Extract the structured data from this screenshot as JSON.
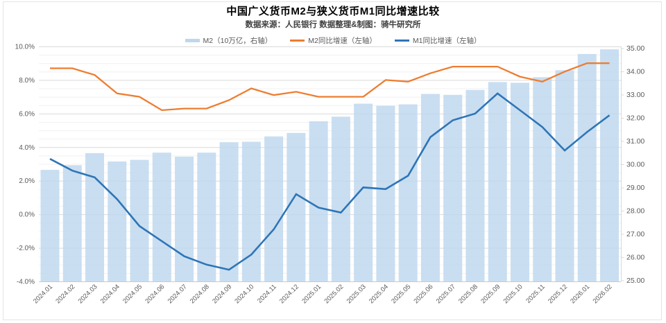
{
  "title": "中国广义货币M2与狭义货币M1同比增速比较",
  "subtitle": "数据来源：人民银行 数据整理&制图：骑牛研究所",
  "legend": {
    "items": [
      {
        "label": "M2（10万亿，右轴）",
        "swatch": "bar"
      },
      {
        "label": "M2同比增速（左轴）",
        "swatch": "line"
      },
      {
        "label": "M1同比增速（左轴）",
        "swatch": "line"
      }
    ]
  },
  "colors": {
    "bar": "#BDD7EE",
    "m2_line": "#ED7D31",
    "m1_line": "#2E75B6",
    "grid_major": "#d9d9d9",
    "grid_minor": "#f1f1f1",
    "axis_line": "#c9c9c9",
    "axis_text": "#595959"
  },
  "chart_data": {
    "type": "bar+line combo",
    "title": "中国广义货币M2与狭义货币M1同比增速比较",
    "categories": [
      "2024.01",
      "2024.02",
      "2024.03",
      "2024.04",
      "2024.05",
      "2024.06",
      "2024.07",
      "2024.08",
      "2024.09",
      "2024.10",
      "2024.11",
      "2024.12",
      "2025.01",
      "2025.02",
      "2025.03",
      "2025.04",
      "2025.05",
      "2025.06",
      "2025.07",
      "2025.08",
      "2025.09",
      "2025.10",
      "2025.11",
      "2025.12",
      "2026.01",
      "2026.02"
    ],
    "series": [
      {
        "name": "M2（10万亿，右轴）",
        "type": "bar",
        "axis": "right",
        "color": "#BDD7EE",
        "values": [
          29.76,
          29.96,
          30.48,
          30.12,
          30.19,
          30.5,
          30.33,
          30.5,
          30.95,
          30.97,
          31.2,
          31.35,
          31.85,
          32.05,
          32.61,
          32.52,
          32.58,
          33.03,
          32.99,
          33.2,
          33.54,
          33.51,
          33.75,
          34.05,
          34.75,
          34.95
        ]
      },
      {
        "name": "M2同比增速（左轴）",
        "type": "line",
        "axis": "left",
        "color": "#ED7D31",
        "values": [
          8.7,
          8.7,
          8.3,
          7.2,
          7.0,
          6.2,
          6.3,
          6.3,
          6.8,
          7.5,
          7.1,
          7.3,
          7.0,
          7.0,
          7.0,
          8.0,
          7.9,
          8.4,
          8.8,
          8.8,
          8.8,
          8.2,
          7.9,
          8.5,
          9.0,
          9.0
        ]
      },
      {
        "name": "M1同比增速（左轴）",
        "type": "line",
        "axis": "left",
        "color": "#2E75B6",
        "values": [
          3.3,
          2.6,
          2.2,
          0.9,
          -0.7,
          -1.6,
          -2.5,
          -3.0,
          -3.3,
          -2.4,
          -0.9,
          1.2,
          0.4,
          0.1,
          1.6,
          1.5,
          2.3,
          4.6,
          5.6,
          6.0,
          7.2,
          6.2,
          5.2,
          3.8,
          4.9,
          5.9
        ]
      }
    ],
    "left_axis": {
      "range": [
        -4,
        10
      ],
      "tick_step": 2,
      "tick_labels": [
        "10.0%",
        "8.0%",
        "6.0%",
        "4.0%",
        "2.0%",
        "0.0%",
        "-2.0%",
        "-4.0%"
      ],
      "format": "percent",
      "minor_grid_step": 0.5
    },
    "right_axis": {
      "range": [
        25,
        35
      ],
      "tick_step": 1,
      "tick_labels": [
        "35.00",
        "34.00",
        "33.00",
        "32.00",
        "31.00",
        "30.00",
        "29.00",
        "28.00",
        "27.00",
        "26.00",
        "25.00"
      ]
    },
    "grid": "horizontal major+minor",
    "legend_position": "top-center"
  }
}
